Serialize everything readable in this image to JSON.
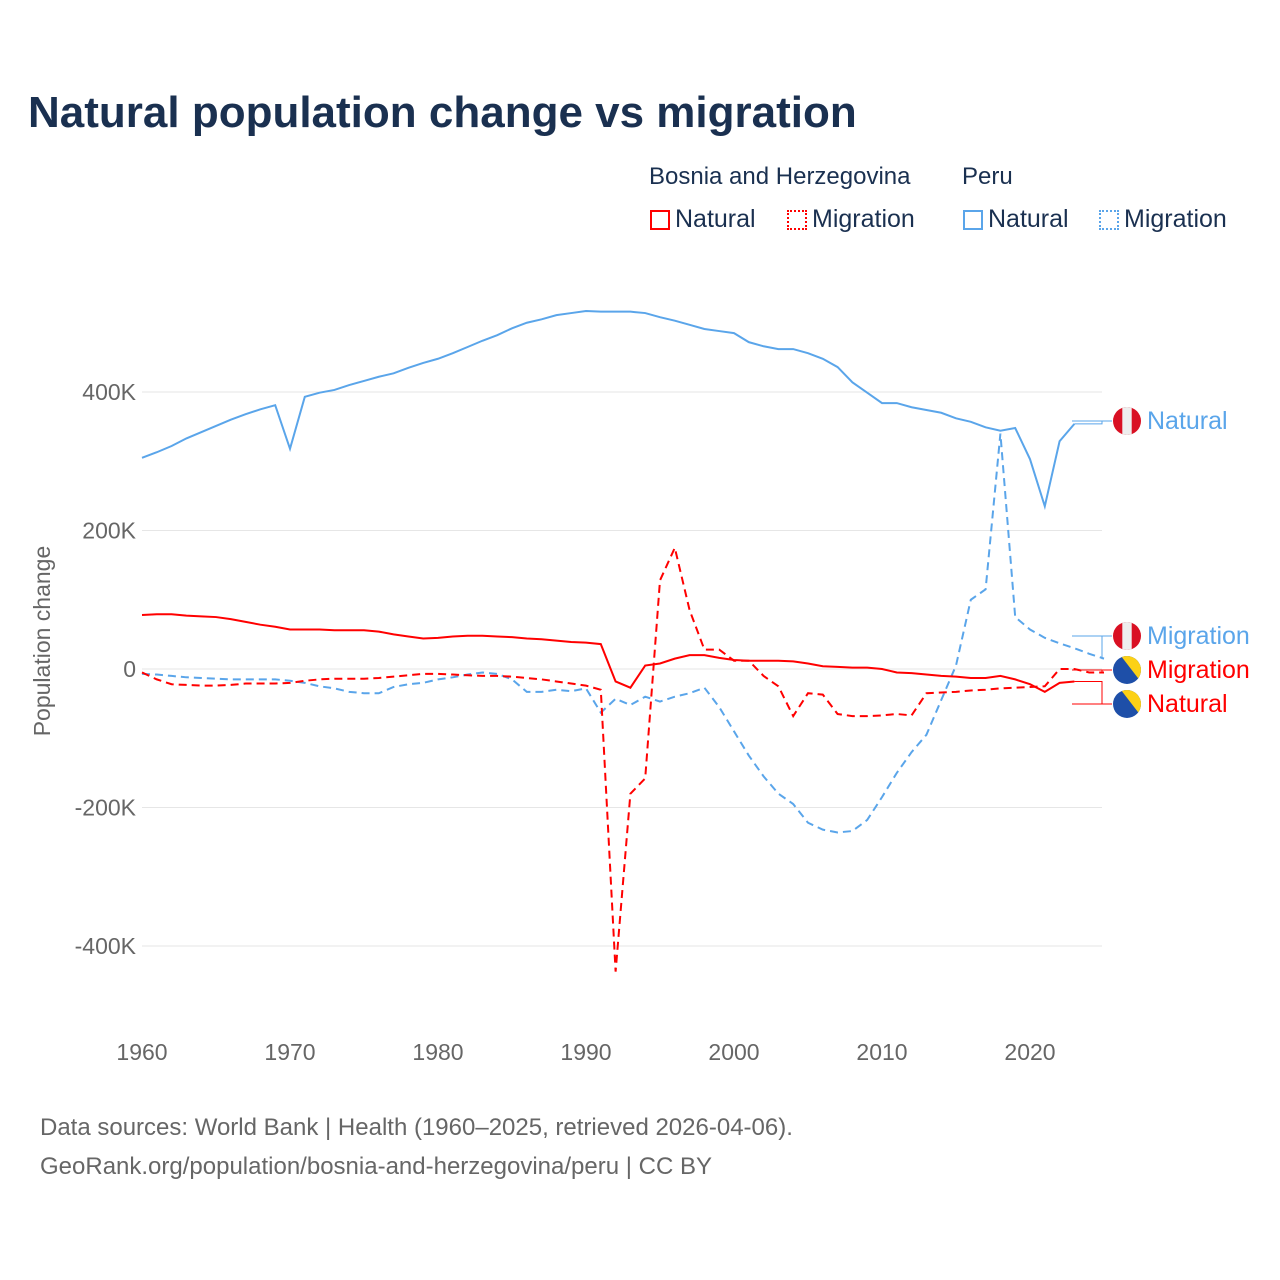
{
  "title": "Natural population change vs migration",
  "legend": {
    "groups": [
      {
        "name": "Bosnia and Herzegovina",
        "items": [
          "Natural",
          "Migration"
        ],
        "color": "#ff0000"
      },
      {
        "name": "Peru",
        "items": [
          "Natural",
          "Migration"
        ],
        "color": "#5aa5ea"
      }
    ]
  },
  "footer": {
    "line1": "Data sources: World Bank | Health (1960–2025, retrieved 2026-04-06).",
    "line2": "GeoRank.org/population/bosnia-and-herzegovina/peru | CC BY"
  },
  "chart_data": {
    "type": "line",
    "title": "Natural population change vs migration",
    "xlabel": "",
    "ylabel": "Population change",
    "xlim": [
      1960,
      2025
    ],
    "ylim": [
      -500,
      560
    ],
    "y_unit": "thousands",
    "yticks": [
      {
        "v": 400,
        "label": "400K"
      },
      {
        "v": 200,
        "label": "200K"
      },
      {
        "v": 0,
        "label": "0"
      },
      {
        "v": -200,
        "label": "-200K"
      },
      {
        "v": -400,
        "label": "-400K"
      }
    ],
    "xticks": [
      1960,
      1970,
      1980,
      1990,
      2000,
      2010,
      2020
    ],
    "grid": true,
    "x_start": 1960,
    "series": [
      {
        "name": "Peru Natural",
        "label": "Natural",
        "country": "Peru",
        "color": "#5aa5ea",
        "dash": false,
        "values": [
          305,
          313,
          322,
          333,
          342,
          351,
          360,
          368,
          375,
          381,
          318,
          393,
          399,
          403,
          410,
          416,
          422,
          427,
          435,
          442,
          448,
          456,
          465,
          474,
          482,
          492,
          500,
          505,
          511,
          514,
          517,
          516,
          516,
          516,
          514,
          508,
          503,
          497,
          491,
          488,
          485,
          472,
          466,
          462,
          462,
          456,
          448,
          436,
          414,
          399,
          384,
          384,
          378,
          374,
          370,
          362,
          357,
          349,
          344,
          348,
          303,
          235,
          329,
          354
        ]
      },
      {
        "name": "Peru Migration",
        "label": "Migration",
        "country": "Peru",
        "color": "#5aa5ea",
        "dash": true,
        "values": [
          -7,
          -8,
          -10,
          -12,
          -13,
          -14,
          -15,
          -15,
          -15,
          -15,
          -17,
          -20,
          -25,
          -28,
          -33,
          -35,
          -35,
          -26,
          -22,
          -20,
          -15,
          -12,
          -8,
          -5,
          -7,
          -15,
          -33,
          -33,
          -30,
          -32,
          -28,
          -63,
          -43,
          -52,
          -40,
          -47,
          -40,
          -35,
          -27,
          -55,
          -90,
          -125,
          -155,
          -180,
          -195,
          -222,
          -232,
          -236,
          -234,
          -218,
          -185,
          -150,
          -120,
          -95,
          -45,
          5,
          100,
          115,
          340,
          75,
          57,
          45,
          37,
          30,
          22,
          15
        ]
      },
      {
        "name": "Bosnia and Herzegovina Migration",
        "label": "Migration",
        "country": "Bosnia and Herzegovina",
        "color": "#ff0000",
        "dash": true,
        "values": [
          -5,
          -15,
          -22,
          -23,
          -24,
          -24,
          -23,
          -21,
          -21,
          -21,
          -20,
          -17,
          -15,
          -14,
          -14,
          -14,
          -13,
          -11,
          -9,
          -7,
          -7,
          -8,
          -9,
          -10,
          -10,
          -11,
          -13,
          -15,
          -18,
          -21,
          -24,
          -30,
          -437,
          -180,
          -158,
          128,
          175,
          85,
          28,
          28,
          12,
          12,
          -10,
          -25,
          -68,
          -35,
          -37,
          -65,
          -68,
          -68,
          -67,
          -65,
          -67,
          -35,
          -34,
          -33,
          -31,
          -30,
          -28,
          -27,
          -26,
          -25,
          0,
          0,
          -5,
          -5
        ]
      },
      {
        "name": "Bosnia and Herzegovina Natural",
        "label": "Natural",
        "country": "Bosnia and Herzegovina",
        "color": "#ff0000",
        "dash": false,
        "values": [
          78,
          79,
          79,
          77,
          76,
          75,
          72,
          68,
          64,
          61,
          57,
          57,
          57,
          56,
          56,
          56,
          54,
          50,
          47,
          44,
          45,
          47,
          48,
          48,
          47,
          46,
          44,
          43,
          41,
          39,
          38,
          36,
          -18,
          -27,
          5,
          8,
          15,
          20,
          20,
          16,
          13,
          12,
          12,
          12,
          11,
          8,
          4,
          3,
          2,
          2,
          0,
          -5,
          -6,
          -8,
          -10,
          -11,
          -13,
          -13,
          -10,
          -15,
          -22,
          -33,
          -20,
          -18
        ]
      }
    ]
  }
}
